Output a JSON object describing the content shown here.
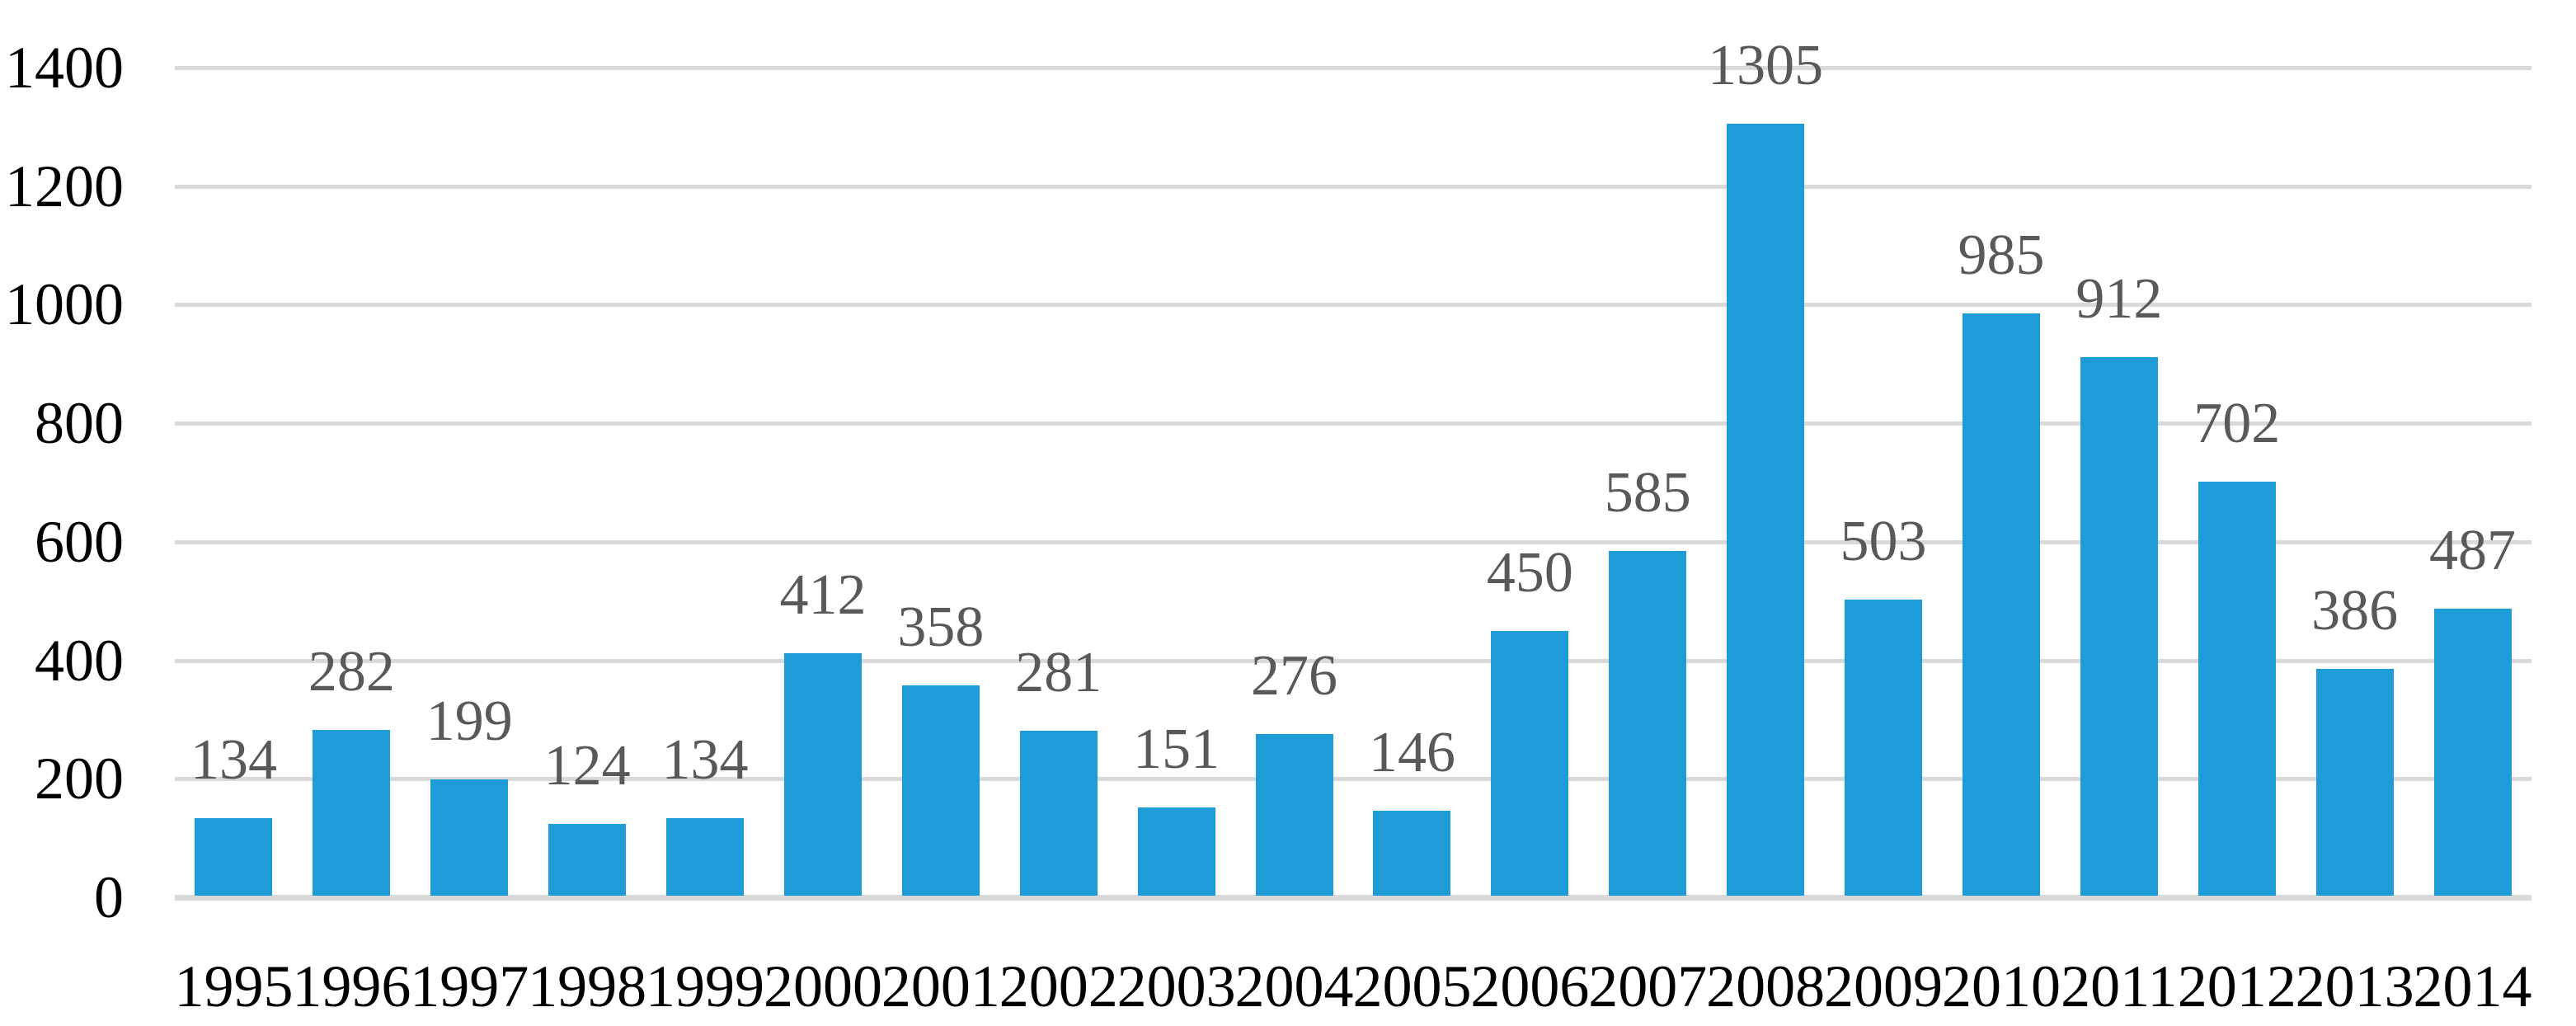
{
  "chart_data": {
    "type": "bar",
    "title": "",
    "xlabel": "",
    "ylabel": "",
    "categories": [
      "1995",
      "1996",
      "1997",
      "1998",
      "1999",
      "2000",
      "2001",
      "2002",
      "2003",
      "2004",
      "2005",
      "2006",
      "2007",
      "2008",
      "2009",
      "2010",
      "2011",
      "2012",
      "2013",
      "2014"
    ],
    "values": [
      134,
      282,
      199,
      124,
      134,
      412,
      358,
      281,
      151,
      276,
      146,
      450,
      585,
      1305,
      503,
      985,
      912,
      702,
      386,
      487
    ],
    "data_labels": [
      "134",
      "282",
      "199",
      "124",
      "134",
      "412",
      "358",
      "281",
      "151",
      "276",
      "146",
      "450",
      "585",
      "1305",
      "503",
      "985",
      "912",
      "702",
      "386",
      "487"
    ],
    "yticks": [
      "0",
      "200",
      "400",
      "600",
      "800",
      "1000",
      "1200",
      "1400"
    ],
    "ylim": [
      0,
      1400
    ],
    "ytick_step": 200,
    "grid": true,
    "legend": false,
    "bar_color": "#1E9CD7",
    "grid_color": "#D9D9D9",
    "baseline_color": "#D9D9D9",
    "data_label_color": "#595959",
    "axis_label_color": "#000000",
    "background_color": "#FFFFFF"
  }
}
